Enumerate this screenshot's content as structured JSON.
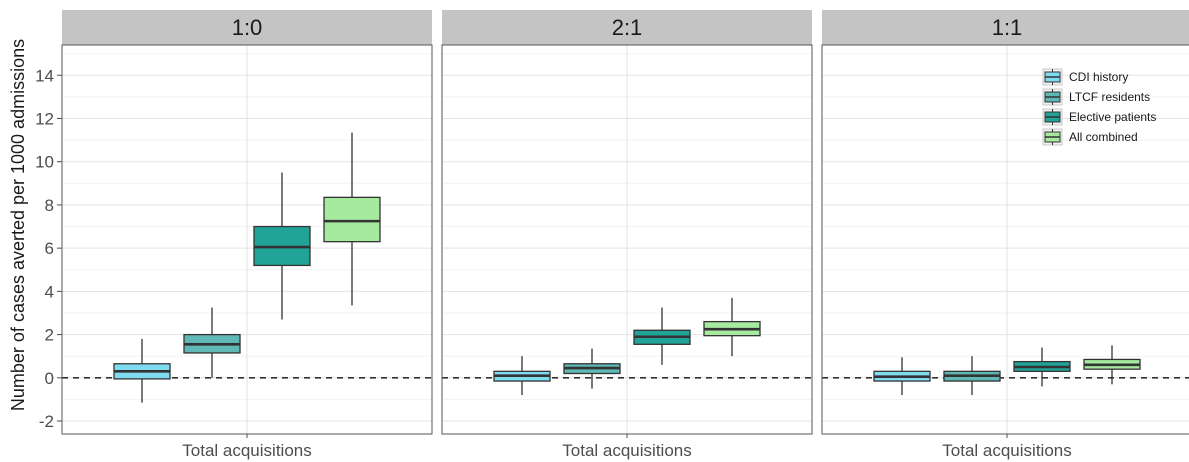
{
  "chart_data": {
    "type": "boxplot",
    "ylabel": "Number of cases averted per 1000 admissions",
    "xlabel": "",
    "ylim": [
      -2.6,
      15.4
    ],
    "yticks": [
      -2,
      0,
      2,
      4,
      6,
      8,
      10,
      12,
      14
    ],
    "reference_line": {
      "y": 0,
      "style": "dashed"
    },
    "legend": {
      "placement": "top-right (inside last panel)"
    },
    "series": [
      {
        "name": "CDI history",
        "color": "#7fdcf0"
      },
      {
        "name": "LTCF residents",
        "color": "#5fb8b5"
      },
      {
        "name": "Elective patients",
        "color": "#21a398"
      },
      {
        "name": "All combined",
        "color": "#a6eaa0"
      }
    ],
    "panels": [
      {
        "facet": "1:0",
        "category": "Total acquisitions",
        "boxes": [
          {
            "series": "CDI history",
            "min": -1.15,
            "q1": -0.05,
            "median": 0.3,
            "q3": 0.65,
            "max": 1.8
          },
          {
            "series": "LTCF residents",
            "min": 0.0,
            "q1": 1.15,
            "median": 1.55,
            "q3": 2.0,
            "max": 3.25
          },
          {
            "series": "Elective patients",
            "min": 2.7,
            "q1": 5.2,
            "median": 6.05,
            "q3": 7.0,
            "max": 9.5
          },
          {
            "series": "All combined",
            "min": 3.35,
            "q1": 6.3,
            "median": 7.25,
            "q3": 8.35,
            "max": 11.35
          }
        ]
      },
      {
        "facet": "2:1",
        "category": "Total acquisitions",
        "boxes": [
          {
            "series": "CDI history",
            "min": -0.8,
            "q1": -0.15,
            "median": 0.1,
            "q3": 0.3,
            "max": 1.0
          },
          {
            "series": "LTCF residents",
            "min": -0.5,
            "q1": 0.2,
            "median": 0.45,
            "q3": 0.65,
            "max": 1.35
          },
          {
            "series": "Elective patients",
            "min": 0.6,
            "q1": 1.55,
            "median": 1.9,
            "q3": 2.2,
            "max": 3.25
          },
          {
            "series": "All combined",
            "min": 1.0,
            "q1": 1.95,
            "median": 2.25,
            "q3": 2.6,
            "max": 3.7
          }
        ]
      },
      {
        "facet": "1:1",
        "category": "Total acquisitions",
        "boxes": [
          {
            "series": "CDI history",
            "min": -0.8,
            "q1": -0.15,
            "median": 0.05,
            "q3": 0.3,
            "max": 0.95
          },
          {
            "series": "LTCF residents",
            "min": -0.8,
            "q1": -0.15,
            "median": 0.1,
            "q3": 0.3,
            "max": 1.0
          },
          {
            "series": "Elective patients",
            "min": -0.4,
            "q1": 0.3,
            "median": 0.5,
            "q3": 0.75,
            "max": 1.4
          },
          {
            "series": "All combined",
            "min": -0.3,
            "q1": 0.4,
            "median": 0.6,
            "q3": 0.85,
            "max": 1.5
          }
        ]
      }
    ]
  }
}
